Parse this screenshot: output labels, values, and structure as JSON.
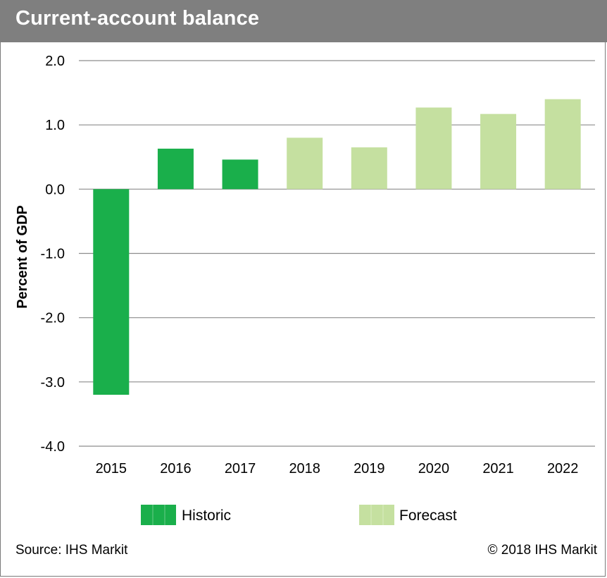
{
  "header": {
    "title": "Current-account balance"
  },
  "chart_data": {
    "type": "bar",
    "title": "Current-account balance",
    "xlabel": "",
    "ylabel": "Percent of GDP",
    "ylim": [
      -4.0,
      2.0
    ],
    "yticks": [
      "2.0",
      "1.0",
      "0.0",
      "-1.0",
      "-2.0",
      "-3.0",
      "-4.0"
    ],
    "ytick_values": [
      2.0,
      1.0,
      0.0,
      -1.0,
      -2.0,
      -3.0,
      -4.0
    ],
    "grid": true,
    "legend_placement": "bottom",
    "categories": [
      "2015",
      "2016",
      "2017",
      "2018",
      "2019",
      "2020",
      "2021",
      "2022"
    ],
    "values": [
      -3.2,
      0.63,
      0.46,
      0.8,
      0.65,
      1.27,
      1.17,
      1.4
    ],
    "bar_series": [
      "Historic",
      "Historic",
      "Historic",
      "Forecast",
      "Forecast",
      "Forecast",
      "Forecast",
      "Forecast"
    ],
    "series": [
      {
        "name": "Historic",
        "color": "#1aaf4b"
      },
      {
        "name": "Forecast",
        "color": "#c5e0a0"
      }
    ]
  },
  "footer": {
    "source": "Source: IHS Markit",
    "copyright": "© 2018 IHS Markit"
  }
}
